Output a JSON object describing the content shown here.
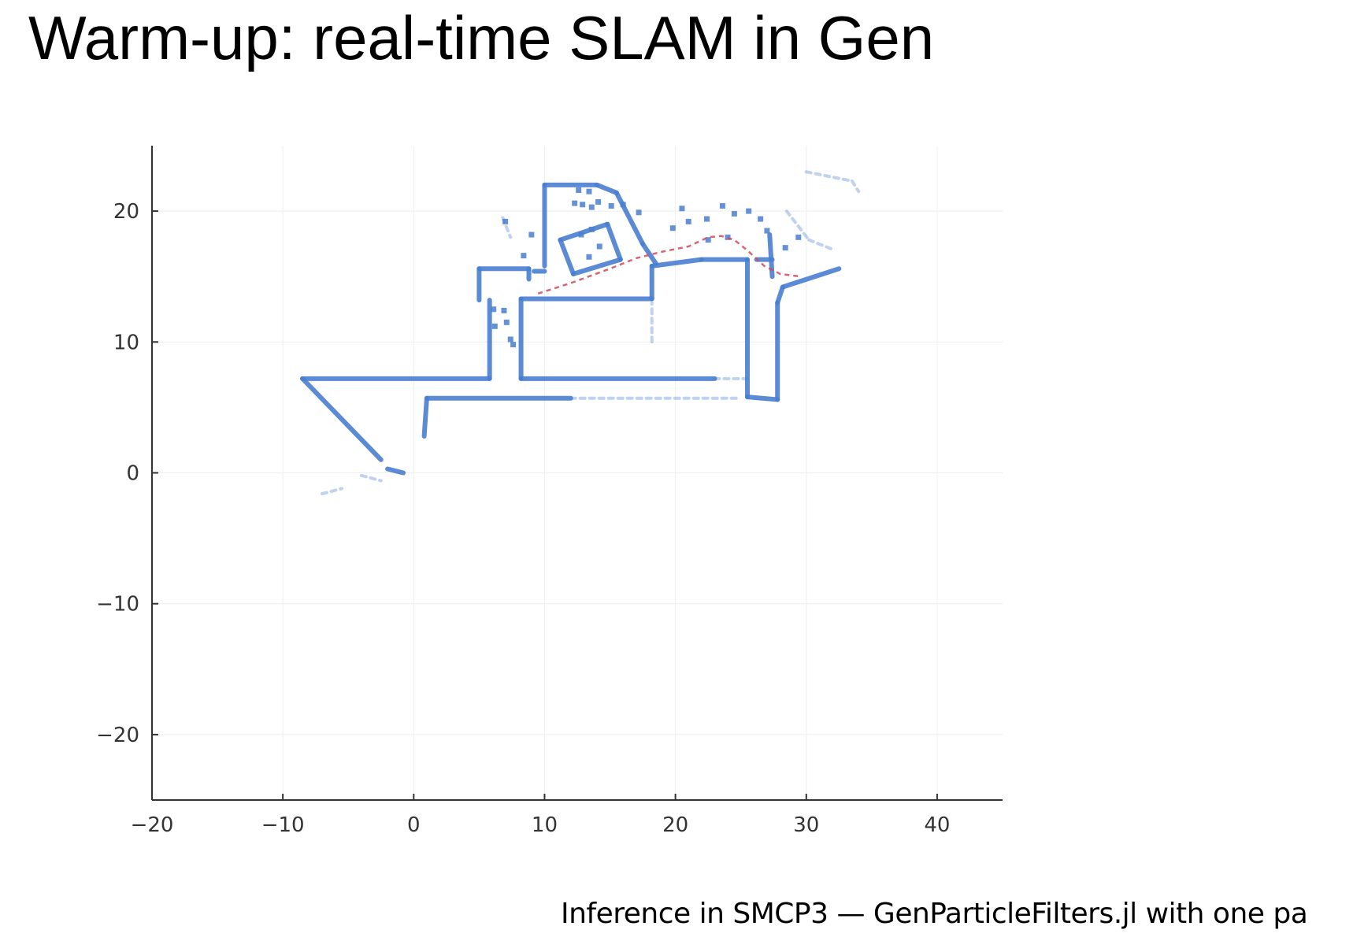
{
  "slide": {
    "title": "Warm-up: real-time SLAM in Gen",
    "caption": "Inference in SMCP3 — GenParticleFilters.jl with one pa"
  },
  "chart_data": {
    "type": "line",
    "title": "",
    "xlabel": "",
    "ylabel": "",
    "xlim": [
      -20,
      45
    ],
    "ylim": [
      -25,
      25
    ],
    "x_ticks": [
      -20,
      -10,
      0,
      10,
      20,
      30,
      40
    ],
    "y_ticks": [
      20,
      10,
      0,
      -10,
      -20
    ],
    "x_tick_labels": [
      "−20",
      "−10",
      "0",
      "10",
      "20",
      "30",
      "40"
    ],
    "y_tick_labels": [
      "20",
      "10",
      "0",
      "−10",
      "−20"
    ],
    "grid": true,
    "legend": "none",
    "colors": {
      "map": "#4a7fd0",
      "trajectory": "#d04a5a",
      "grid": "#eeeeee",
      "axis": "#333333"
    },
    "series": [
      {
        "kind": "map-walls",
        "segments": [
          [
            [
              -8.5,
              7.2
            ],
            [
              5.8,
              7.2
            ]
          ],
          [
            [
              -8.5,
              7.2
            ],
            [
              -2.5,
              1.0
            ]
          ],
          [
            [
              -2.0,
              0.3
            ],
            [
              -0.8,
              0.0
            ]
          ],
          [
            [
              5.8,
              7.2
            ],
            [
              5.8,
              13.2
            ]
          ],
          [
            [
              5.0,
              13.2
            ],
            [
              5.0,
              15.6
            ]
          ],
          [
            [
              5.0,
              15.6
            ],
            [
              8.8,
              15.6
            ]
          ],
          [
            [
              8.8,
              15.6
            ],
            [
              8.8,
              14.8
            ]
          ],
          [
            [
              9.2,
              15.4
            ],
            [
              10.0,
              15.4
            ]
          ],
          [
            [
              8.2,
              7.2
            ],
            [
              8.2,
              13.3
            ]
          ],
          [
            [
              8.2,
              13.3
            ],
            [
              18.2,
              13.3
            ]
          ],
          [
            [
              8.2,
              7.2
            ],
            [
              23.0,
              7.2
            ]
          ],
          [
            [
              18.2,
              13.3
            ],
            [
              18.2,
              15.8
            ]
          ],
          [
            [
              18.2,
              15.8
            ],
            [
              22.0,
              16.3
            ]
          ],
          [
            [
              22.0,
              16.3
            ],
            [
              25.5,
              16.3
            ]
          ],
          [
            [
              25.5,
              16.3
            ],
            [
              25.5,
              5.8
            ]
          ],
          [
            [
              25.5,
              5.8
            ],
            [
              27.8,
              5.6
            ]
          ],
          [
            [
              27.8,
              5.6
            ],
            [
              27.8,
              13.0
            ]
          ],
          [
            [
              27.8,
              13.0
            ],
            [
              28.2,
              14.2
            ]
          ],
          [
            [
              28.2,
              14.2
            ],
            [
              32.5,
              15.6
            ]
          ],
          [
            [
              1.0,
              5.7
            ],
            [
              12.0,
              5.7
            ]
          ],
          [
            [
              1.0,
              5.7
            ],
            [
              0.8,
              2.8
            ]
          ],
          [
            [
              10.0,
              15.8
            ],
            [
              10.0,
              22.0
            ]
          ],
          [
            [
              10.0,
              22.0
            ],
            [
              14.0,
              22.0
            ]
          ],
          [
            [
              14.0,
              22.0
            ],
            [
              15.5,
              21.4
            ]
          ],
          [
            [
              15.5,
              21.4
            ],
            [
              17.5,
              17.5
            ]
          ],
          [
            [
              11.2,
              17.8
            ],
            [
              14.8,
              19.0
            ]
          ],
          [
            [
              14.8,
              19.0
            ],
            [
              15.8,
              16.3
            ]
          ],
          [
            [
              15.8,
              16.3
            ],
            [
              12.2,
              15.2
            ]
          ],
          [
            [
              12.2,
              15.2
            ],
            [
              11.2,
              17.8
            ]
          ],
          [
            [
              17.5,
              17.5
            ],
            [
              18.5,
              16.0
            ]
          ],
          [
            [
              27.2,
              18.2
            ],
            [
              27.4,
              15.0
            ]
          ],
          [
            [
              26.2,
              16.3
            ],
            [
              27.4,
              16.3
            ]
          ]
        ],
        "faint_segments": [
          [
            [
              12.0,
              5.7
            ],
            [
              25.0,
              5.7
            ]
          ],
          [
            [
              23.0,
              7.2
            ],
            [
              25.5,
              7.2
            ]
          ],
          [
            [
              18.2,
              10.0
            ],
            [
              18.2,
              13.0
            ]
          ],
          [
            [
              -7.0,
              -1.6
            ],
            [
              -5.5,
              -1.2
            ]
          ],
          [
            [
              -4.0,
              -0.2
            ],
            [
              -2.5,
              -0.6
            ]
          ],
          [
            [
              28.5,
              20.0
            ],
            [
              30.2,
              17.8
            ]
          ],
          [
            [
              30.2,
              17.8
            ],
            [
              32.2,
              17.0
            ]
          ],
          [
            [
              30.0,
              23.0
            ],
            [
              33.5,
              22.3
            ]
          ],
          [
            [
              33.5,
              22.3
            ],
            [
              34.0,
              21.5
            ]
          ],
          [
            [
              6.8,
              19.5
            ],
            [
              7.4,
              18.0
            ]
          ]
        ],
        "dots": [
          [
            12.3,
            20.6
          ],
          [
            12.9,
            20.5
          ],
          [
            13.6,
            20.3
          ],
          [
            14.1,
            20.7
          ],
          [
            12.6,
            21.6
          ],
          [
            13.4,
            21.5
          ],
          [
            15.1,
            20.4
          ],
          [
            12.8,
            18.2
          ],
          [
            13.6,
            18.6
          ],
          [
            14.2,
            17.3
          ],
          [
            13.4,
            16.5
          ],
          [
            8.4,
            16.6
          ],
          [
            6.2,
            11.2
          ],
          [
            7.4,
            10.2
          ],
          [
            7.1,
            11.5
          ],
          [
            19.8,
            18.7
          ],
          [
            21.0,
            19.2
          ],
          [
            23.6,
            20.4
          ],
          [
            24.5,
            19.8
          ],
          [
            25.6,
            20.0
          ],
          [
            26.5,
            19.4
          ],
          [
            24.0,
            18.0
          ],
          [
            22.5,
            17.8
          ],
          [
            27.0,
            18.5
          ],
          [
            28.4,
            17.2
          ],
          [
            16.0,
            20.5
          ],
          [
            17.2,
            19.9
          ],
          [
            20.5,
            20.2
          ],
          [
            22.4,
            19.4
          ],
          [
            29.4,
            18.0
          ],
          [
            7.0,
            19.2
          ],
          [
            9.0,
            18.2
          ],
          [
            6.1,
            12.5
          ],
          [
            6.9,
            12.4
          ],
          [
            7.6,
            9.8
          ]
        ]
      },
      {
        "kind": "trajectory",
        "x": [
          9.5,
          12.0,
          15.0,
          17.0,
          19.0,
          21.0,
          22.5,
          23.5,
          24.5,
          25.5,
          26.8,
          28.0,
          29.6
        ],
        "y": [
          13.7,
          14.5,
          15.6,
          16.4,
          16.9,
          17.3,
          18.0,
          18.1,
          17.8,
          17.0,
          15.8,
          15.2,
          15.0
        ]
      }
    ]
  }
}
